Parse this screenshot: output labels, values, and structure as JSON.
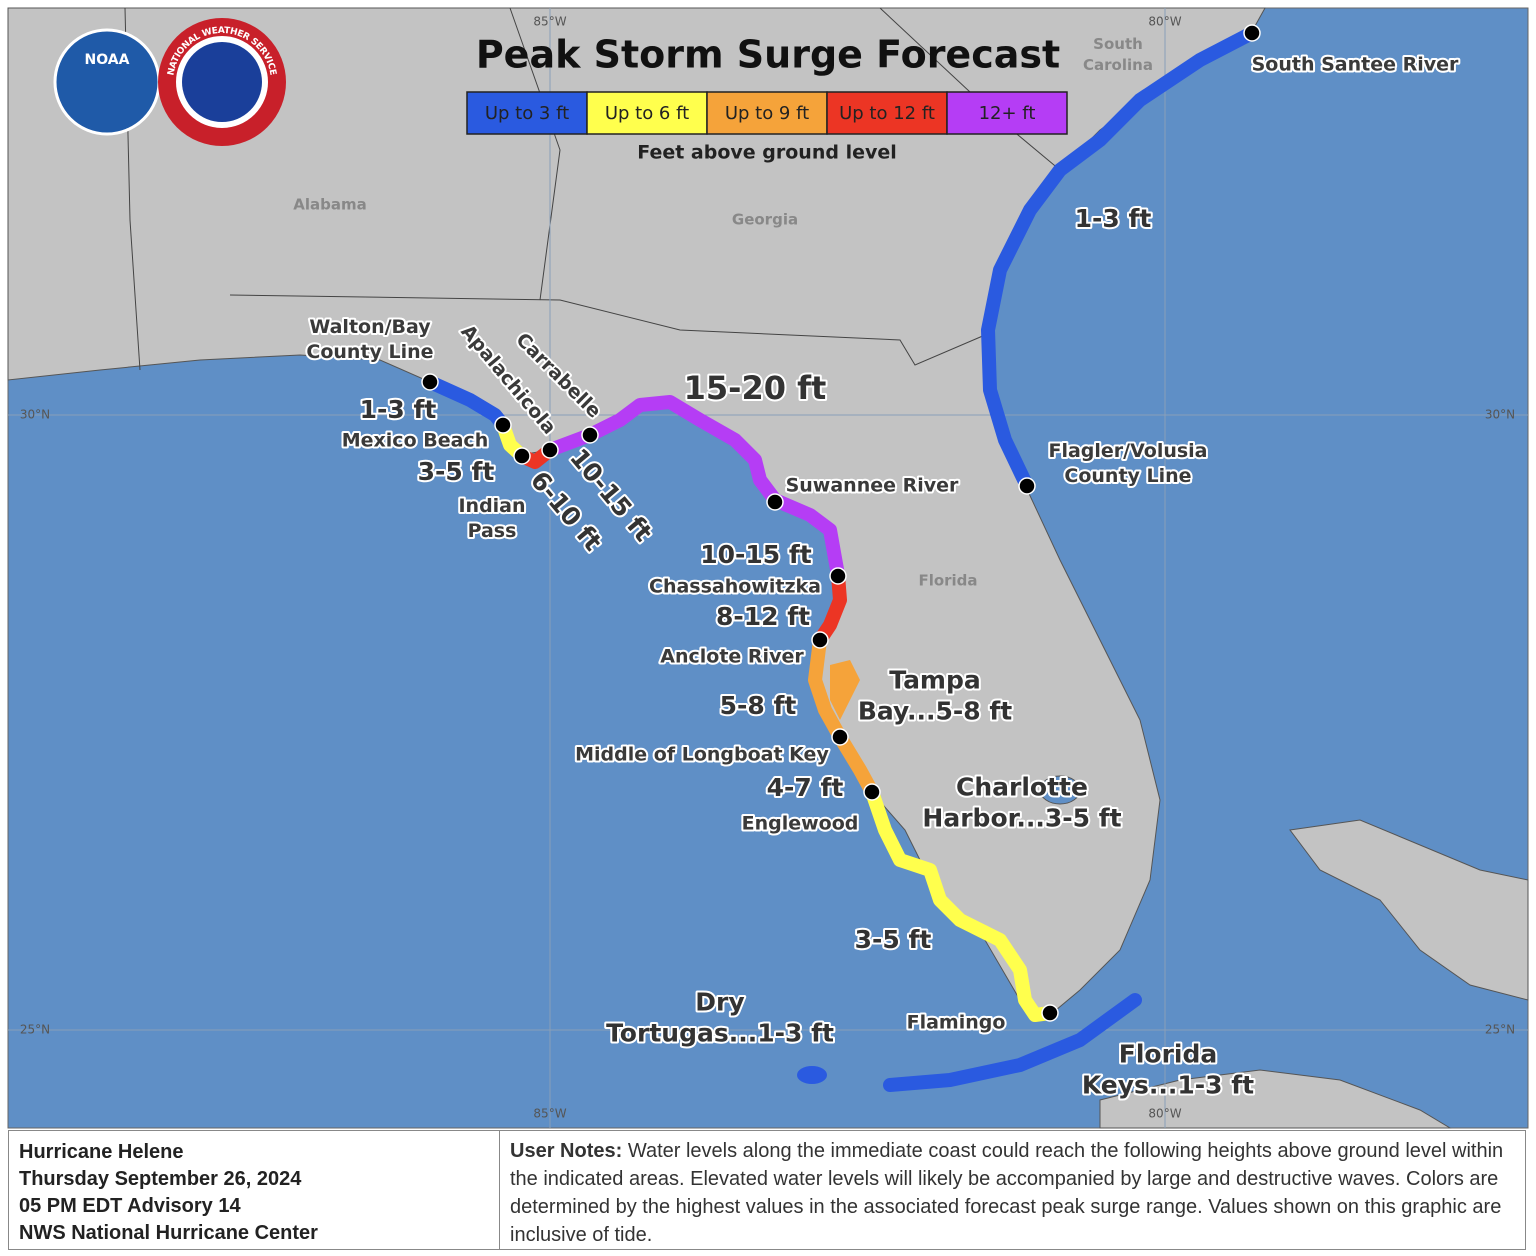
{
  "title": "Peak Storm Surge Forecast",
  "logos": {
    "noaa": "NOAA",
    "nws": "NATIONAL WEATHER SERVICE"
  },
  "legend": {
    "items": [
      {
        "label": "Up to 3 ft",
        "color": "#2a5ae0"
      },
      {
        "label": "Up to 6 ft",
        "color": "#ffff4d"
      },
      {
        "label": "Up to 9 ft",
        "color": "#f5a33a"
      },
      {
        "label": "Up to 12 ft",
        "color": "#ec3524"
      },
      {
        "label": "12+ ft",
        "color": "#b53df5"
      }
    ],
    "caption": "Feet above ground level"
  },
  "grid_labels": {
    "lon": [
      "85°W",
      "80°W"
    ],
    "lat": [
      "30°N",
      "25°N"
    ]
  },
  "regions": [
    {
      "lines": [
        "Alabama"
      ]
    },
    {
      "lines": [
        "Georgia"
      ]
    },
    {
      "lines": [
        "South",
        "Carolina"
      ]
    },
    {
      "lines": [
        "Florida"
      ]
    }
  ],
  "locations": [
    {
      "lines": [
        "South Santee River"
      ]
    },
    {
      "lines": [
        "Flagler/Volusia",
        "County Line"
      ]
    },
    {
      "lines": [
        "Walton/Bay",
        "County Line"
      ]
    },
    {
      "lines": [
        "Apalachicola"
      ]
    },
    {
      "lines": [
        "Carrabelle"
      ]
    },
    {
      "lines": [
        "Mexico Beach"
      ]
    },
    {
      "lines": [
        "Indian",
        "Pass"
      ]
    },
    {
      "lines": [
        "Suwannee River"
      ]
    },
    {
      "lines": [
        "Chassahowitzka"
      ]
    },
    {
      "lines": [
        "Anclote River"
      ]
    },
    {
      "lines": [
        "Middle of Longboat Key"
      ]
    },
    {
      "lines": [
        "Englewood"
      ]
    },
    {
      "lines": [
        "Flamingo"
      ]
    }
  ],
  "surge_labels": [
    {
      "lines": [
        "1-3 ft"
      ]
    },
    {
      "lines": [
        "15-20 ft"
      ]
    },
    {
      "lines": [
        "1-3 ft"
      ]
    },
    {
      "lines": [
        "3-5 ft"
      ]
    },
    {
      "lines": [
        "6-10 ft"
      ]
    },
    {
      "lines": [
        "10-15 ft"
      ]
    },
    {
      "lines": [
        "10-15 ft"
      ]
    },
    {
      "lines": [
        "8-12 ft"
      ]
    },
    {
      "lines": [
        "Tampa",
        "Bay...5-8 ft"
      ]
    },
    {
      "lines": [
        "5-8 ft"
      ]
    },
    {
      "lines": [
        "4-7 ft"
      ]
    },
    {
      "lines": [
        "Charlotte",
        "Harbor...3-5 ft"
      ]
    },
    {
      "lines": [
        "3-5 ft"
      ]
    },
    {
      "lines": [
        "Dry",
        "Tortugas...1-3 ft"
      ]
    },
    {
      "lines": [
        "Florida",
        "Keys...1-3 ft"
      ]
    }
  ],
  "footer": {
    "advisory": [
      "Hurricane Helene",
      "Thursday September 26, 2024",
      "05 PM EDT Advisory 14",
      "NWS National Hurricane Center"
    ],
    "notes_label": "User Notes:",
    "notes": "Water levels along the immediate coast could reach the following heights above ground level within the indicated areas. Elevated water levels will likely be accompanied by large and destructive waves. Colors are determined by the highest values in the associated forecast peak surge range. Values shown on this graphic are inclusive of tide."
  }
}
